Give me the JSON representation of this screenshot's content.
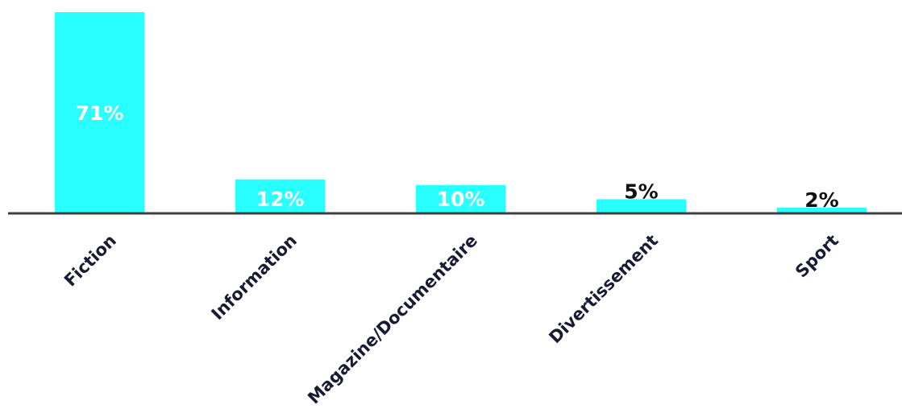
{
  "chart_data": {
    "type": "bar",
    "categories": [
      "Fiction",
      "Information",
      "Magazine/Documentaire",
      "Divertissement",
      "Sport"
    ],
    "values": [
      71,
      12,
      10,
      5,
      2
    ],
    "value_labels": [
      "71%",
      "12%",
      "10%",
      "5%",
      "2%"
    ],
    "unit": "%",
    "ylim": [
      0,
      71
    ],
    "grid": false,
    "legend": "none"
  },
  "colors": {
    "bar": "#2affff",
    "axis": "#404040",
    "label_inside": "#ffffff",
    "label_outside": "#111111",
    "category_text": "#1a1a35"
  }
}
